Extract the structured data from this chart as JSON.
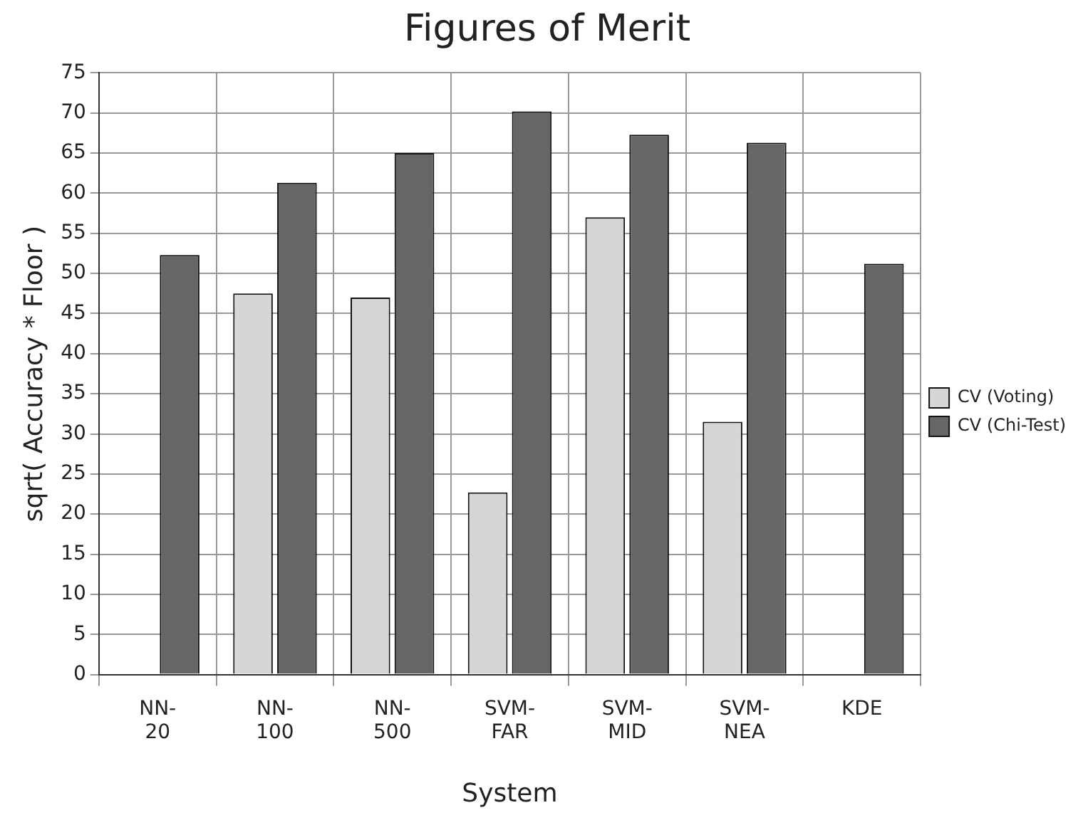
{
  "chart_data": {
    "type": "bar",
    "title": "Figures of Merit",
    "xlabel": "System",
    "ylabel": "sqrt( Accuracy * Floor )",
    "categories": [
      "NN-20",
      "NN-100",
      "NN-500",
      "SVM-FAR",
      "SVM-MID",
      "SVM-NEA",
      "KDE"
    ],
    "series": [
      {
        "name": "CV (Voting)",
        "color": "#d6d6d6",
        "values": [
          null,
          47.5,
          47,
          22.7,
          57,
          31.5,
          null
        ]
      },
      {
        "name": "CV (Chi-Test)",
        "color": "#666666",
        "values": [
          52.3,
          61.3,
          65,
          70.2,
          67.3,
          66.3,
          51.2
        ]
      }
    ],
    "ylim": [
      0,
      75
    ],
    "yticks": [
      0,
      5,
      10,
      15,
      20,
      25,
      30,
      35,
      40,
      45,
      50,
      55,
      60,
      65,
      70,
      75
    ],
    "grid": true,
    "legend": "right"
  }
}
